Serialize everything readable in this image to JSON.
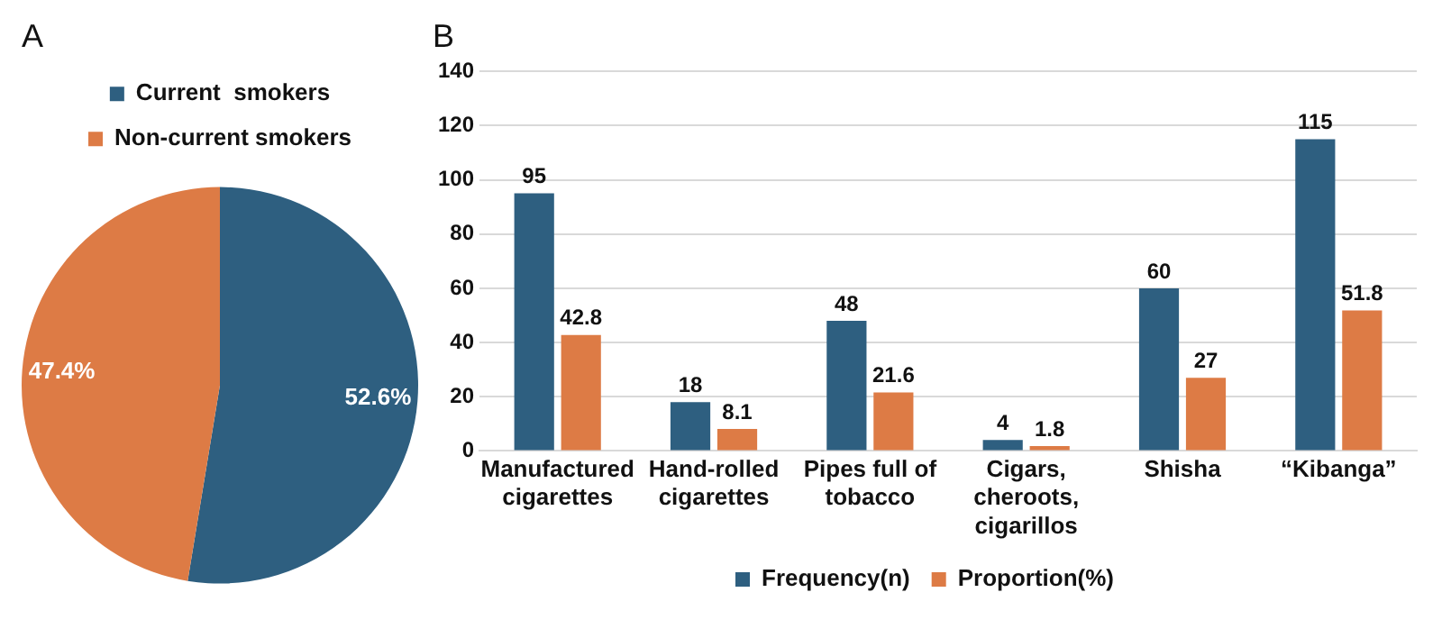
{
  "chart_data": [
    {
      "type": "pie",
      "title": "A",
      "categories": [
        "Current  smokers",
        "Non-current smokers"
      ],
      "values": [
        52.6,
        47.4
      ],
      "colors": [
        "#2e5f80",
        "#dd7b45"
      ],
      "value_labels": [
        "52.6%",
        "47.4%"
      ],
      "legend": "top"
    },
    {
      "type": "bar",
      "title": "B",
      "categories": [
        "Manufactured cigarettes",
        "Hand-rolled cigarettes",
        "Pipes full of tobacco",
        "Cigars, cheroots, cigarillos",
        "Shisha",
        "“Kibanga”"
      ],
      "series": [
        {
          "name": "Frequency(n)",
          "color": "#2e5f80",
          "values": [
            95,
            18,
            48,
            4,
            60,
            115
          ]
        },
        {
          "name": "Proportion(%)",
          "color": "#dd7b45",
          "values": [
            42.8,
            8.1,
            21.6,
            1.8,
            27,
            51.8
          ]
        }
      ],
      "ylim": [
        0,
        140
      ],
      "yticks": [
        0,
        20,
        40,
        60,
        80,
        100,
        120,
        140
      ],
      "grid": "y",
      "data_labels": true,
      "legend": "bottom"
    }
  ]
}
